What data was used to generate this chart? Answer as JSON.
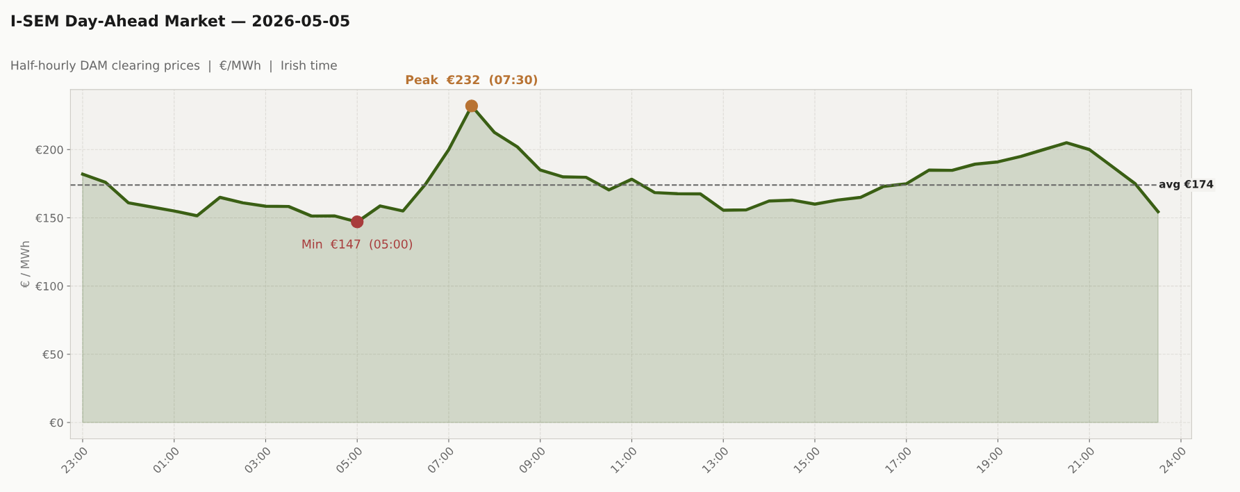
{
  "chart_data": {
    "type": "area",
    "title": "I-SEM Day-Ahead Market — 2026-05-05",
    "subtitle": "Half-hourly DAM clearing prices  |  €/MWh  |  Irish time",
    "ylabel": "€ / MWh",
    "series": [
      {
        "color": "#3a5f14",
        "x": [
          "2026-05-04T23:00",
          "2026-05-04T23:30",
          "2026-05-05T00:00",
          "2026-05-05T00:30",
          "2026-05-05T01:00",
          "2026-05-05T01:30",
          "2026-05-05T02:00",
          "2026-05-05T02:30",
          "2026-05-05T03:00",
          "2026-05-05T03:30",
          "2026-05-05T04:00",
          "2026-05-05T04:30",
          "2026-05-05T05:00",
          "2026-05-05T05:30",
          "2026-05-05T06:00",
          "2026-05-05T06:30",
          "2026-05-05T07:00",
          "2026-05-05T07:30",
          "2026-05-05T08:00",
          "2026-05-05T08:30",
          "2026-05-05T09:00",
          "2026-05-05T09:30",
          "2026-05-05T10:00",
          "2026-05-05T10:30",
          "2026-05-05T11:00",
          "2026-05-05T11:30",
          "2026-05-05T12:00",
          "2026-05-05T12:30",
          "2026-05-05T13:00",
          "2026-05-05T13:30",
          "2026-05-05T14:00",
          "2026-05-05T14:30",
          "2026-05-05T15:00",
          "2026-05-05T15:30",
          "2026-05-05T16:00",
          "2026-05-05T16:30",
          "2026-05-05T17:00",
          "2026-05-05T17:30",
          "2026-05-05T18:00",
          "2026-05-05T18:30",
          "2026-05-05T19:00",
          "2026-05-05T19:30",
          "2026-05-05T20:00",
          "2026-05-05T20:30",
          "2026-05-05T21:00",
          "2026-05-05T21:30",
          "2026-05-05T22:00",
          "2026-05-05T22:30"
        ],
        "values": [
          182,
          176,
          161,
          158,
          155,
          151.5,
          165,
          161,
          158.5,
          158.3,
          151.3,
          151.4,
          147,
          158.7,
          155,
          175,
          200,
          232,
          212.5,
          202,
          185,
          180,
          179.7,
          170.5,
          178.3,
          168.5,
          167.7,
          167.5,
          155.6,
          155.8,
          162.3,
          163,
          160,
          163,
          165,
          173,
          175,
          185,
          184.8,
          189.3,
          191,
          195,
          200,
          205,
          200,
          187.5,
          175,
          154.5
        ]
      },
      {
        "type": "scatter",
        "x": [
          "2026-05-05T07:30",
          "2026-05-05T05:00"
        ],
        "values": [
          232,
          147
        ],
        "colors": [
          "#b87333",
          "#a83c3c"
        ]
      }
    ],
    "annotations": [
      {
        "text": "Peak  €232  (07:30)",
        "x": "2026-05-05T07:30",
        "y": 232
      },
      {
        "text": "Min  €147  (05:00)",
        "x": "2026-05-05T05:00",
        "y": 147
      }
    ],
    "ref_lines": [
      {
        "axis": "y",
        "value": 174,
        "label": "avg €174",
        "color": "#666666",
        "line_style": "dashed"
      }
    ],
    "xlim": [
      "2026-05-04T22:44",
      "2026-05-05T23:14"
    ],
    "xticks": [
      {
        "value": "2026-05-04T23:00",
        "label": "23:00"
      },
      {
        "value": "2026-05-05T01:00",
        "label": "01:00"
      },
      {
        "value": "2026-05-05T03:00",
        "label": "03:00"
      },
      {
        "value": "2026-05-05T05:00",
        "label": "05:00"
      },
      {
        "value": "2026-05-05T07:00",
        "label": "07:00"
      },
      {
        "value": "2026-05-05T09:00",
        "label": "09:00"
      },
      {
        "value": "2026-05-05T11:00",
        "label": "11:00"
      },
      {
        "value": "2026-05-05T13:00",
        "label": "13:00"
      },
      {
        "value": "2026-05-05T15:00",
        "label": "15:00"
      },
      {
        "value": "2026-05-05T17:00",
        "label": "17:00"
      },
      {
        "value": "2026-05-05T19:00",
        "label": "19:00"
      },
      {
        "value": "2026-05-05T21:00",
        "label": "21:00"
      },
      {
        "value": "2026-05-05T23:00",
        "label": "24:00"
      }
    ],
    "ylim": [
      -12,
      244
    ],
    "yticks": [
      {
        "value": 0,
        "label": "€0"
      },
      {
        "value": 50,
        "label": "€50"
      },
      {
        "value": 100,
        "label": "€100"
      },
      {
        "value": 150,
        "label": "€150"
      },
      {
        "value": 200,
        "label": "€200"
      }
    ],
    "grid": true
  }
}
